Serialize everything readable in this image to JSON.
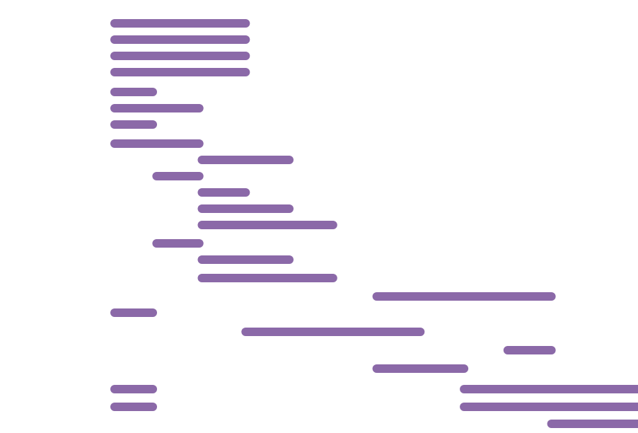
{
  "chart_data": {
    "type": "bar",
    "subtype": "gantt",
    "title": "",
    "xlabel": "",
    "ylabel": "",
    "axes_visible": false,
    "grid": false,
    "legend": "none",
    "bar_color": "#8B69A8",
    "xlim": [
      0,
      100
    ],
    "tasks": [
      {
        "start": 0,
        "end": 24
      },
      {
        "start": 0,
        "end": 24
      },
      {
        "start": 0,
        "end": 24
      },
      {
        "start": 0,
        "end": 24
      },
      {
        "start": 0,
        "end": 7
      },
      {
        "start": 0,
        "end": 15.5
      },
      {
        "start": 0,
        "end": 7
      },
      {
        "start": 0,
        "end": 15.5
      },
      {
        "start": 16,
        "end": 32
      },
      {
        "start": 7.7,
        "end": 15.5
      },
      {
        "start": 16,
        "end": 24
      },
      {
        "start": 16,
        "end": 32
      },
      {
        "start": 16,
        "end": 40
      },
      {
        "start": 7.7,
        "end": 15.5
      },
      {
        "start": 16,
        "end": 32
      },
      {
        "start": 16,
        "end": 40
      },
      {
        "start": 48,
        "end": 80
      },
      {
        "start": 0,
        "end": 7
      },
      {
        "start": 24,
        "end": 56
      },
      {
        "start": 72,
        "end": 80
      },
      {
        "start": 48,
        "end": 64
      },
      {
        "start": 0,
        "end": 7
      },
      {
        "start": 0,
        "end": 7
      },
      {
        "start": 64,
        "end": 96
      },
      {
        "start": 64,
        "end": 96
      },
      {
        "start": 80,
        "end": 96
      }
    ]
  }
}
